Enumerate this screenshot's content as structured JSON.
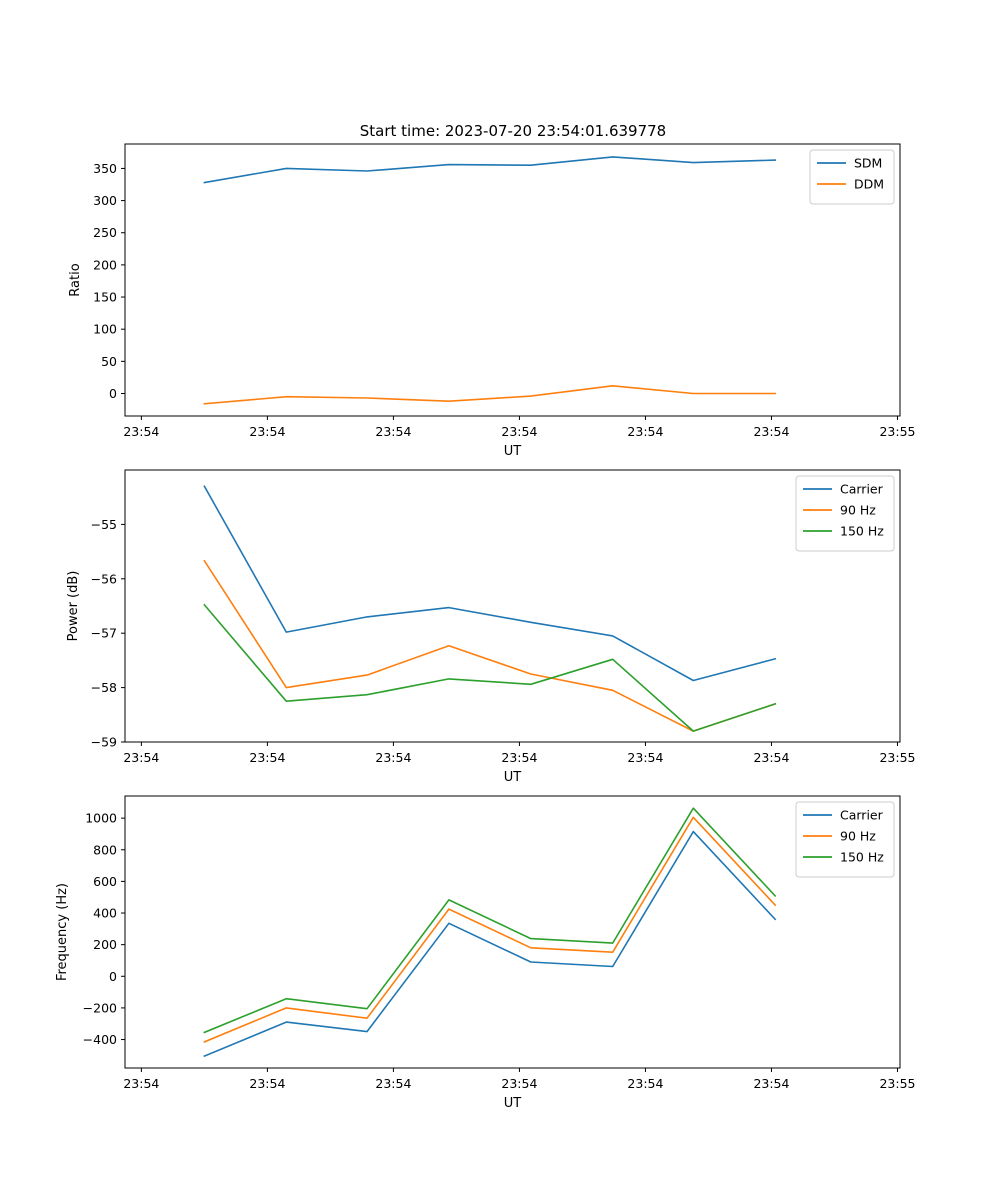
{
  "figure": {
    "title": "Start time: 2023-07-20 23:54:01.639778"
  },
  "chart_data": [
    {
      "type": "line",
      "xlabel": "UT",
      "ylabel": "Ratio",
      "x_tick_labels": [
        "23:54",
        "23:54",
        "23:54",
        "23:54",
        "23:54",
        "23:54",
        "23:55"
      ],
      "xlim": [
        -0.13,
        6.02
      ],
      "x": [
        0.5,
        1.15,
        1.79,
        2.44,
        3.09,
        3.74,
        4.38,
        5.03
      ],
      "yticks": [
        0,
        50,
        100,
        150,
        200,
        250,
        300,
        350
      ],
      "ylim": [
        -35,
        388
      ],
      "legend_position": "top-right",
      "series": [
        {
          "name": "SDM",
          "color": "#1f77b4",
          "values": [
            328,
            350,
            346,
            356,
            355,
            368,
            359,
            363
          ]
        },
        {
          "name": "DDM",
          "color": "#ff7f0e",
          "values": [
            -16,
            -5,
            -7,
            -12,
            -4,
            12,
            0,
            0
          ]
        }
      ]
    },
    {
      "type": "line",
      "xlabel": "UT",
      "ylabel": "Power (dB)",
      "x_tick_labels": [
        "23:54",
        "23:54",
        "23:54",
        "23:54",
        "23:54",
        "23:54",
        "23:55"
      ],
      "xlim": [
        -0.13,
        6.02
      ],
      "x": [
        0.5,
        1.15,
        1.79,
        2.44,
        3.09,
        3.74,
        4.38,
        5.03
      ],
      "yticks": [
        -59,
        -58,
        -57,
        -56,
        -55
      ],
      "ylim": [
        -59.0,
        -54.0
      ],
      "legend_position": "top-right",
      "series": [
        {
          "name": "Carrier",
          "color": "#1f77b4",
          "values": [
            -54.3,
            -56.98,
            -56.7,
            -56.53,
            -56.8,
            -57.05,
            -57.87,
            -57.47
          ]
        },
        {
          "name": "90 Hz",
          "color": "#ff7f0e",
          "values": [
            -55.67,
            -58.0,
            -57.77,
            -57.23,
            -57.75,
            -58.05,
            -58.8,
            -58.3
          ]
        },
        {
          "name": "150 Hz",
          "color": "#2ca02c",
          "values": [
            -56.48,
            -58.25,
            -58.13,
            -57.84,
            -57.94,
            -57.48,
            -58.8,
            -58.3
          ]
        }
      ]
    },
    {
      "type": "line",
      "xlabel": "UT",
      "ylabel": "Frequency (Hz)",
      "x_tick_labels": [
        "23:54",
        "23:54",
        "23:54",
        "23:54",
        "23:54",
        "23:54",
        "23:55"
      ],
      "xlim": [
        -0.13,
        6.02
      ],
      "x": [
        0.5,
        1.15,
        1.79,
        2.44,
        3.09,
        3.74,
        4.38,
        5.03
      ],
      "yticks": [
        -400,
        -200,
        0,
        200,
        400,
        600,
        800,
        1000
      ],
      "ylim": [
        -580,
        1140
      ],
      "legend_position": "top-right",
      "series": [
        {
          "name": "Carrier",
          "color": "#1f77b4",
          "values": [
            -505,
            -290,
            -350,
            335,
            90,
            62,
            915,
            360
          ]
        },
        {
          "name": "90 Hz",
          "color": "#ff7f0e",
          "values": [
            -415,
            -200,
            -265,
            425,
            180,
            152,
            1005,
            450
          ]
        },
        {
          "name": "150 Hz",
          "color": "#2ca02c",
          "values": [
            -355,
            -142,
            -205,
            483,
            238,
            210,
            1063,
            508
          ]
        }
      ]
    }
  ]
}
